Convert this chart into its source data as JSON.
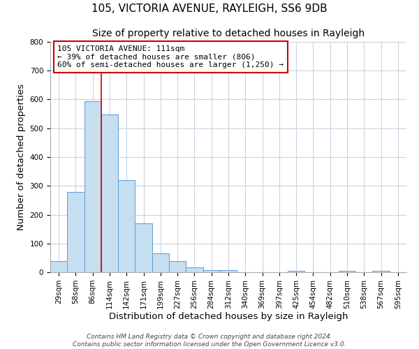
{
  "title": "105, VICTORIA AVENUE, RAYLEIGH, SS6 9DB",
  "subtitle": "Size of property relative to detached houses in Rayleigh",
  "xlabel": "Distribution of detached houses by size in Rayleigh",
  "ylabel": "Number of detached properties",
  "bin_labels": [
    "29sqm",
    "58sqm",
    "86sqm",
    "114sqm",
    "142sqm",
    "171sqm",
    "199sqm",
    "227sqm",
    "256sqm",
    "284sqm",
    "312sqm",
    "340sqm",
    "369sqm",
    "397sqm",
    "425sqm",
    "454sqm",
    "482sqm",
    "510sqm",
    "538sqm",
    "567sqm",
    "595sqm"
  ],
  "bar_values": [
    38,
    278,
    593,
    549,
    321,
    170,
    66,
    38,
    17,
    8,
    8,
    0,
    0,
    0,
    5,
    0,
    0,
    5,
    0,
    5,
    0
  ],
  "bar_color": "#c5dff0",
  "bar_edge_color": "#5b9bd5",
  "property_line_x": 3,
  "property_line_color": "#cc0000",
  "annotation_text": "105 VICTORIA AVENUE: 111sqm\n← 39% of detached houses are smaller (806)\n60% of semi-detached houses are larger (1,250) →",
  "annotation_box_color": "#ffffff",
  "annotation_box_edge": "#cc0000",
  "ylim": [
    0,
    800
  ],
  "yticks": [
    0,
    100,
    200,
    300,
    400,
    500,
    600,
    700,
    800
  ],
  "footer": "Contains HM Land Registry data © Crown copyright and database right 2024.\nContains public sector information licensed under the Open Government Licence v3.0.",
  "bg_color": "#ffffff",
  "grid_color": "#c8d4e0",
  "title_fontsize": 11,
  "subtitle_fontsize": 10,
  "tick_fontsize": 7.5,
  "label_fontsize": 9.5,
  "annotation_fontsize": 8,
  "footer_fontsize": 6.5
}
